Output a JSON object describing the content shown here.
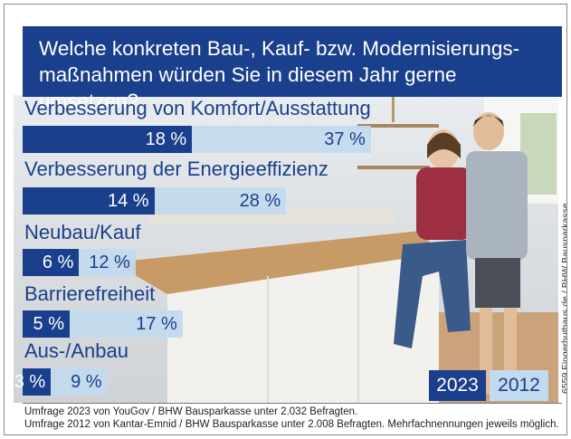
{
  "chart_data": {
    "type": "bar",
    "orientation": "horizontal",
    "title": "Welche konkreten Bau-, Kauf- bzw. Modernisierungs-maßnahmen würden Sie in diesem Jahr gerne umsetzen?",
    "title_lines": [
      "Welche konkreten Bau-, Kauf- bzw. Modernisierungs-",
      "maßnahmen würden Sie in diesem Jahr gerne umsetzen?"
    ],
    "categories": [
      "Verbesserung von Komfort/Ausstattung",
      "Verbesserung der Energieeffizienz",
      "Neubau/Kauf",
      "Barrierefreiheit",
      "Aus-/Anbau"
    ],
    "series": [
      {
        "name": "2023",
        "values": [
          18,
          14,
          6,
          5,
          3
        ],
        "labels": [
          "18 %",
          "14 %",
          "6 %",
          "5 %",
          "3 %"
        ],
        "color": "#1a3f8c"
      },
      {
        "name": "2012",
        "values": [
          37,
          28,
          12,
          17,
          9
        ],
        "labels": [
          "37 %",
          "28 %",
          "12 %",
          "17 %",
          "9 %"
        ],
        "color": "#c2daee"
      }
    ],
    "legend_placement": "bottom-right",
    "grid": false
  },
  "colors": {
    "accent": "#1a3f8c",
    "light": "#c2daee"
  },
  "credit": "6559 Fingerhuthaus.de / BHW Bausparkasse",
  "footnotes": [
    "Umfrage 2023 von YouGov / BHW Bausparkasse unter 2.032 Befragten.",
    "Umfrage 2012 von Kantar-Emnid / BHW Bausparkasse unter 2.008 Befragten. Mehrfachnennungen jeweils möglich."
  ],
  "background_photo": "couple-in-kitchen"
}
